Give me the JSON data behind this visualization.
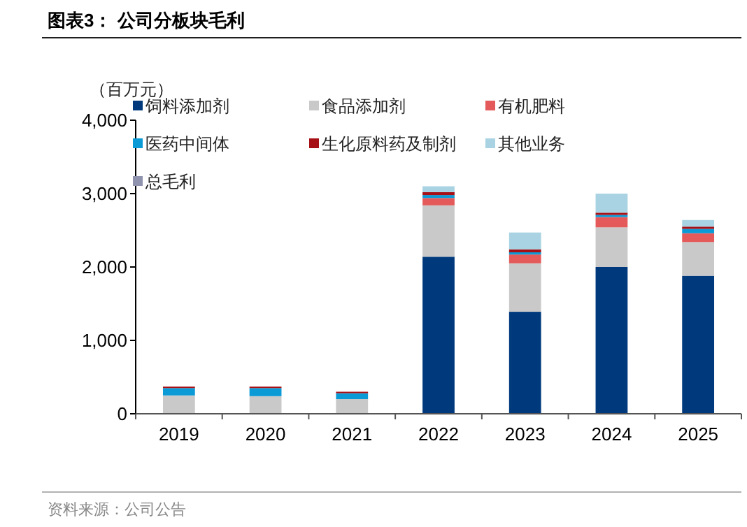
{
  "chart_data": {
    "type": "bar",
    "title": "图表3：  公司分板块毛利",
    "ylabel": "（百万元）",
    "annotations": [
      "资料来源：公司公告"
    ],
    "categories": [
      "2019",
      "2020",
      "2021",
      "2022",
      "2023",
      "2024",
      "2025"
    ],
    "stacked": true,
    "ylim": [
      0,
      4000
    ],
    "yticks": [
      {
        "value": 0,
        "label": "0"
      },
      {
        "value": 1000,
        "label": "1,000"
      },
      {
        "value": 2000,
        "label": "2,000"
      },
      {
        "value": 3000,
        "label": "3,000"
      },
      {
        "value": 4000,
        "label": "4,000"
      }
    ],
    "grid": false,
    "legend": "top left",
    "series": [
      {
        "name": "饲料添加剂",
        "color": "#003a7d",
        "values": [
          0,
          0,
          0,
          2140,
          1390,
          2000,
          1880
        ]
      },
      {
        "name": "食品添加剂",
        "color": "#c9c9c9",
        "values": [
          250,
          240,
          200,
          700,
          660,
          540,
          460
        ]
      },
      {
        "name": "有机肥料",
        "color": "#e45a5a",
        "values": [
          0,
          0,
          0,
          100,
          120,
          140,
          120
        ]
      },
      {
        "name": "医药中间体",
        "color": "#0a9ad6",
        "values": [
          100,
          110,
          80,
          40,
          30,
          30,
          60
        ]
      },
      {
        "name": "生化原料药及制剂",
        "color": "#a50f15",
        "values": [
          20,
          20,
          20,
          40,
          40,
          30,
          30
        ]
      },
      {
        "name": "其他业务",
        "color": "#a9d3e2",
        "values": [
          null,
          null,
          null,
          80,
          230,
          260,
          90
        ]
      },
      {
        "name": "总毛利",
        "color": "#8f93ad",
        "values": [
          null,
          null,
          null,
          null,
          null,
          null,
          null
        ]
      }
    ]
  }
}
